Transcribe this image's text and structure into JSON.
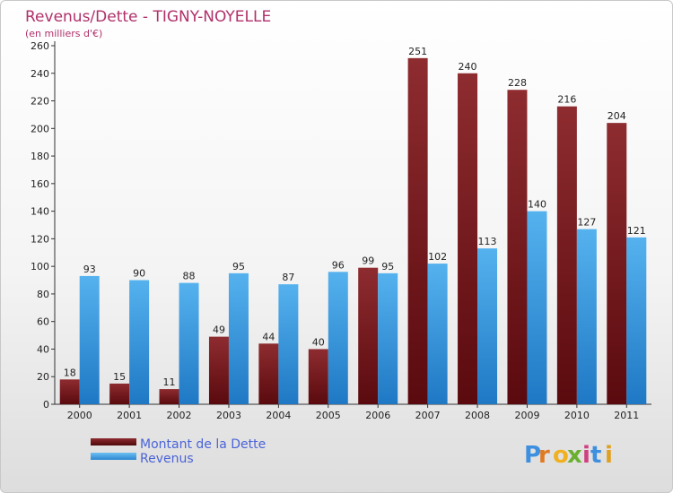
{
  "chart_title": "Revenus/Dette - TIGNY-NOYELLE",
  "chart_subtitle": "(en milliers d'€)",
  "legend": [
    "Montant de la Dette",
    "Revenus"
  ],
  "logo_text": "Proxiti",
  "colors": {
    "dette": "#7a1f22",
    "revenus": "#3d9be0",
    "title": "#b0306a"
  },
  "chart_data": {
    "type": "bar",
    "title": "Revenus/Dette - TIGNY-NOYELLE",
    "subtitle": "(en milliers d'€)",
    "categories": [
      "2000",
      "2001",
      "2002",
      "2003",
      "2004",
      "2005",
      "2006",
      "2007",
      "2008",
      "2009",
      "2010",
      "2011"
    ],
    "series": [
      {
        "name": "Montant de la Dette",
        "values": [
          18,
          15,
          11,
          49,
          44,
          40,
          99,
          251,
          240,
          228,
          216,
          204
        ]
      },
      {
        "name": "Revenus",
        "values": [
          93,
          90,
          88,
          95,
          87,
          96,
          95,
          102,
          113,
          140,
          127,
          121
        ]
      }
    ],
    "ylim": [
      0,
      260
    ],
    "yticks": [
      0,
      20,
      40,
      60,
      80,
      100,
      120,
      140,
      160,
      180,
      200,
      220,
      240,
      260
    ],
    "grid": false,
    "legend_position": "bottom-left"
  }
}
